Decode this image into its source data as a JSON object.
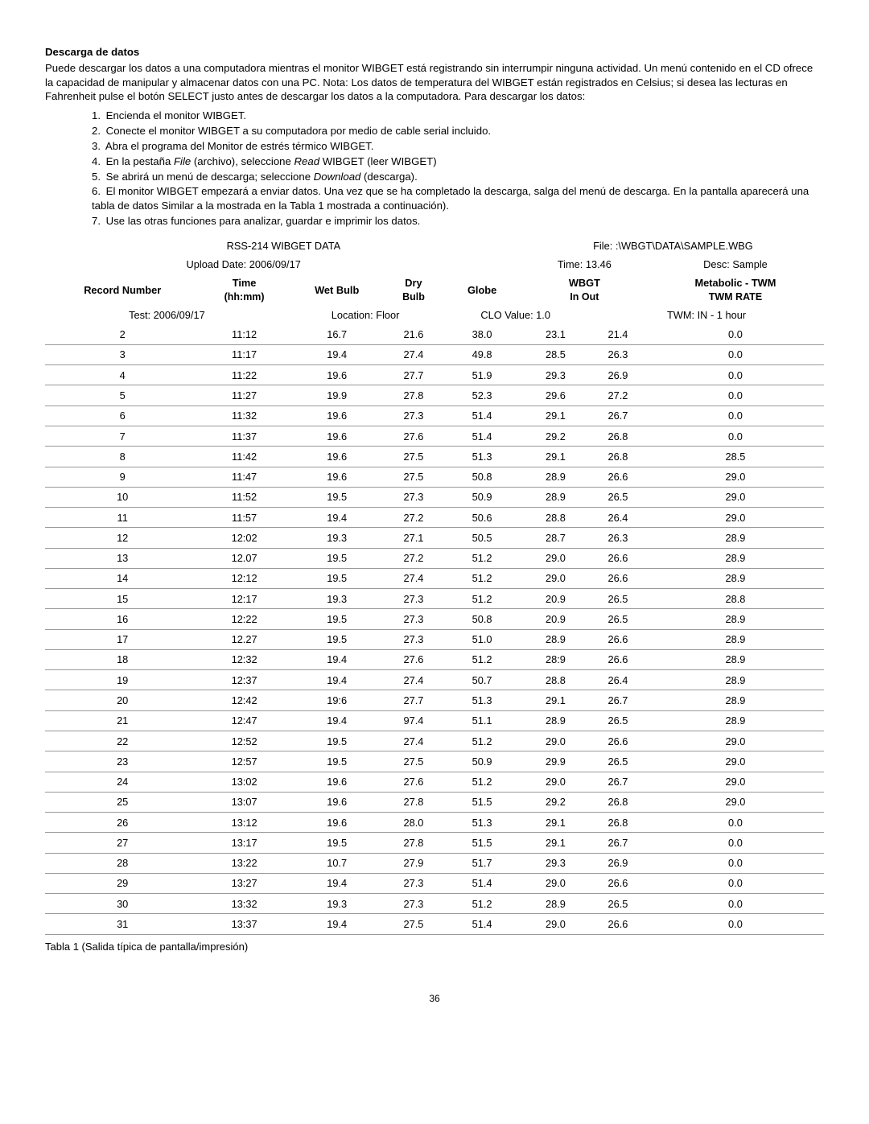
{
  "section_title": "Descarga de datos",
  "intro": "Puede descargar los datos a una computadora mientras el monitor WIBGET está registrando sin interrumpir ninguna actividad. Un menú contenido en el CD ofrece la capacidad de manipular y almacenar datos con una PC. Nota: Los datos de temperatura del WIBGET están registrados en Celsius; si desea las lecturas en Fahrenheit pulse el botón SELECT justo antes de descargar los datos a la computadora. Para descargar los datos:",
  "steps": [
    {
      "n": "1.",
      "t": "Encienda el monitor WIBGET."
    },
    {
      "n": "2.",
      "t": "Conecte el monitor WIBGET a su computadora por medio de cable serial incluido."
    },
    {
      "n": "3.",
      "t": "Abra el programa del Monitor de estrés térmico WIBGET."
    },
    {
      "n": "4.",
      "pre": "En la pestaña ",
      "it1": "File",
      "mid": " (archivo), seleccione ",
      "it2": "Read",
      "post": " WIBGET (leer WIBGET)"
    },
    {
      "n": "5.",
      "pre": "Se abrirá un menú de descarga; seleccione ",
      "it1": "Download",
      "post": " (descarga)."
    },
    {
      "n": "6.",
      "t": "El monitor WIBGET empezará a enviar datos. Una vez que se ha completado la descarga, salga del menú de descarga. En la pantalla aparecerá una tabla de datos Similar a la mostrada en la Tabla 1 mostrada a continuación)."
    },
    {
      "n": "7.",
      "t": "Use las otras funciones para analizar, guardar e imprimir los datos."
    }
  ],
  "header": {
    "title": "RSS-214 WIBGET DATA",
    "file": "File: :\\WBGT\\DATA\\SAMPLE.WBG",
    "upload": "Upload Date: 2006/09/17",
    "time": "Time: 13.46",
    "desc": "Desc: Sample"
  },
  "cols": {
    "record": "Record Number",
    "time": "Time",
    "time_sub": "(hh:mm)",
    "wet": "Wet Bulb",
    "dry": "Dry",
    "dry_sub": "Bulb",
    "globe": "Globe",
    "wbgt": "WBGT",
    "wbgt_sub": "In   Out",
    "met": "Metabolic - TWM",
    "met_sub": "TWM RATE"
  },
  "test_row": {
    "test": "Test: 2006/09/17",
    "loc": "Location: Floor",
    "clo": "CLO Value: 1.0",
    "twm": "TWM: IN - 1 hour"
  },
  "rows": [
    [
      "2",
      "11:12",
      "16.7",
      "21.6",
      "38.0",
      "23.1",
      "21.4",
      "0.0"
    ],
    [
      "3",
      "11:17",
      "19.4",
      "27.4",
      "49.8",
      "28.5",
      "26.3",
      "0.0"
    ],
    [
      "4",
      "11:22",
      "19.6",
      "27.7",
      "51.9",
      "29.3",
      "26.9",
      "0.0"
    ],
    [
      "5",
      "11:27",
      "19.9",
      "27.8",
      "52.3",
      "29.6",
      "27.2",
      "0.0"
    ],
    [
      "6",
      "11:32",
      "19.6",
      "27.3",
      "51.4",
      "29.1",
      "26.7",
      "0.0"
    ],
    [
      "7",
      "11:37",
      "19.6",
      "27.6",
      "51.4",
      "29.2",
      "26.8",
      "0.0"
    ],
    [
      "8",
      "11:42",
      "19.6",
      "27.5",
      "51.3",
      "29.1",
      "26.8",
      "28.5"
    ],
    [
      "9",
      "11:47",
      "19.6",
      "27.5",
      "50.8",
      "28.9",
      "26.6",
      "29.0"
    ],
    [
      "10",
      "11:52",
      "19.5",
      "27.3",
      "50.9",
      "28.9",
      "26.5",
      "29.0"
    ],
    [
      "11",
      "11:57",
      "19.4",
      "27.2",
      "50.6",
      "28.8",
      "26.4",
      "29.0"
    ],
    [
      "12",
      "12:02",
      "19.3",
      "27.1",
      "50.5",
      "28.7",
      "26.3",
      "28.9"
    ],
    [
      "13",
      "12.07",
      "19.5",
      "27.2",
      "51.2",
      "29.0",
      "26.6",
      "28.9"
    ],
    [
      "14",
      "12:12",
      "19.5",
      "27.4",
      "51.2",
      "29.0",
      "26.6",
      "28.9"
    ],
    [
      "15",
      "12:17",
      "19.3",
      "27.3",
      "51.2",
      "20.9",
      "26.5",
      "28.8"
    ],
    [
      "16",
      "12:22",
      "19.5",
      "27.3",
      "50.8",
      "20.9",
      "26.5",
      "28.9"
    ],
    [
      "17",
      "12.27",
      "19.5",
      "27.3",
      "51.0",
      "28.9",
      "26.6",
      "28.9"
    ],
    [
      "18",
      "12:32",
      "19.4",
      "27.6",
      "51.2",
      "28:9",
      "26.6",
      "28.9"
    ],
    [
      "19",
      "12:37",
      "19.4",
      "27.4",
      "50.7",
      "28.8",
      "26.4",
      "28.9"
    ],
    [
      "20",
      "12:42",
      "19:6",
      "27.7",
      "51.3",
      "29.1",
      "26.7",
      "28.9"
    ],
    [
      "21",
      "12:47",
      "19.4",
      "97.4",
      "51.1",
      "28.9",
      "26.5",
      "28.9"
    ],
    [
      "22",
      "12:52",
      "19.5",
      "27.4",
      "51.2",
      "29.0",
      "26.6",
      "29.0"
    ],
    [
      "23",
      "12:57",
      "19.5",
      "27.5",
      "50.9",
      "29.9",
      "26.5",
      "29.0"
    ],
    [
      "24",
      "13:02",
      "19.6",
      "27.6",
      "51.2",
      "29.0",
      "26.7",
      "29.0"
    ],
    [
      "25",
      "13:07",
      "19.6",
      "27.8",
      "51.5",
      "29.2",
      "26.8",
      "29.0"
    ],
    [
      "26",
      "13:12",
      "19.6",
      "28.0",
      "51.3",
      "29.1",
      "26.8",
      "0.0"
    ],
    [
      "27",
      "13:17",
      "19.5",
      "27.8",
      "51.5",
      "29.1",
      "26.7",
      "0.0"
    ],
    [
      "28",
      "13:22",
      "10.7",
      "27.9",
      "51.7",
      "29.3",
      "26.9",
      "0.0"
    ],
    [
      "29",
      "13:27",
      "19.4",
      "27.3",
      "51.4",
      "29.0",
      "26.6",
      "0.0"
    ],
    [
      "30",
      "13:32",
      "19.3",
      "27.3",
      "51.2",
      "28.9",
      "26.5",
      "0.0"
    ],
    [
      "31",
      "13:37",
      "19.4",
      "27.5",
      "51.4",
      "29.0",
      "26.6",
      "0.0"
    ]
  ],
  "caption": "Tabla 1 (Salida típica de pantalla/impresión)",
  "page_num": "36",
  "colors": {
    "text": "#000000",
    "line_dark": "#000000",
    "line_light": "#999999"
  }
}
